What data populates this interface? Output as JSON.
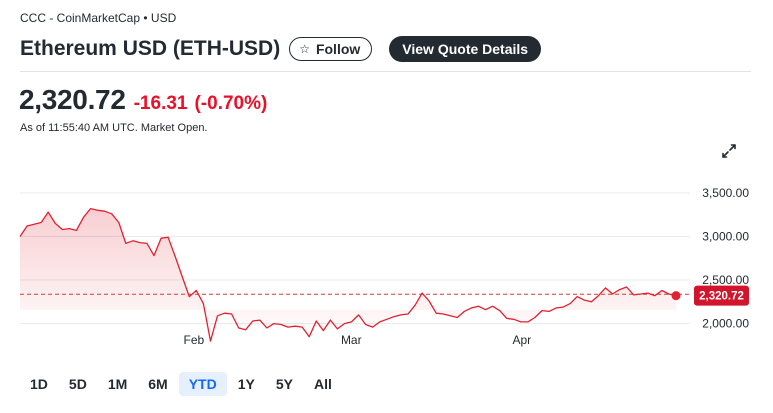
{
  "header": {
    "source": "CCC - CoinMarketCap • USD",
    "title": "Ethereum USD (ETH-USD)",
    "follow_label": "Follow",
    "quote_label": "View Quote Details"
  },
  "quote": {
    "price": "2,320.72",
    "change": "-16.31",
    "change_pct": "(-0.70%)",
    "as_of": "As of 11:55:40 AM UTC. Market Open.",
    "current_tag": "2,320.72"
  },
  "colors": {
    "line": "#e0212f",
    "negative": "#eb0f29",
    "active_range": "#0f69ff"
  },
  "icons": {
    "follow": "star-icon",
    "expand": "expand-icon"
  },
  "range_selector": {
    "options": [
      "1D",
      "5D",
      "1M",
      "6M",
      "YTD",
      "1Y",
      "5Y",
      "All"
    ],
    "selected": "YTD"
  },
  "chart_data": {
    "type": "area",
    "y_ticks": [
      "3,500.00",
      "3,000.00",
      "2,500.00",
      "2,000.00"
    ],
    "y_tick_values": [
      3500,
      3000,
      2500,
      2000
    ],
    "x_ticks": [
      "Feb",
      "Mar",
      "Apr"
    ],
    "ylim": [
      1640,
      3820
    ],
    "previous_close": 2337,
    "last_value": 2320.72,
    "grid": true,
    "series": [
      {
        "values": [
          3000,
          3120,
          3140,
          3160,
          3280,
          3150,
          3080,
          3090,
          3070,
          3220,
          3320,
          3300,
          3290,
          3260,
          3160,
          2920,
          2950,
          2930,
          2920,
          2780,
          2980,
          2990,
          2770,
          2540,
          2310,
          2380,
          2230,
          1800,
          2090,
          2120,
          2110,
          1950,
          1930,
          2030,
          2040,
          1950,
          2000,
          1990,
          1960,
          1970,
          1960,
          1850,
          2030,
          1920,
          2040,
          1940,
          2000,
          2020,
          2100,
          1990,
          1960,
          2020,
          2050,
          2080,
          2100,
          2110,
          2210,
          2350,
          2260,
          2120,
          2110,
          2090,
          2070,
          2140,
          2180,
          2200,
          2160,
          2200,
          2150,
          2060,
          2050,
          2020,
          2020,
          2070,
          2150,
          2140,
          2180,
          2190,
          2230,
          2310,
          2270,
          2250,
          2320,
          2410,
          2340,
          2390,
          2420,
          2330,
          2340,
          2350,
          2320,
          2380,
          2340,
          2320
        ]
      }
    ]
  }
}
